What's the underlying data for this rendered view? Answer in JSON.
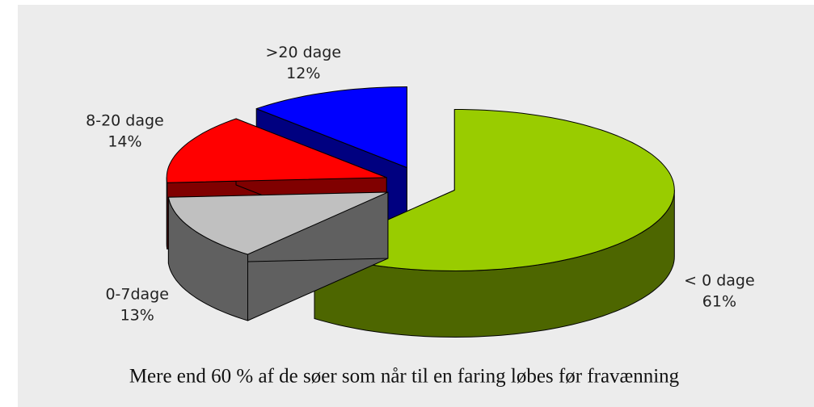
{
  "chart_data": {
    "type": "pie3d",
    "caption": "Mere end 60 % af de søer som når til en faring løbes før fravænning",
    "categories": [
      "< 0 dage",
      "0-7dage",
      "8-20 dage",
      ">20 dage"
    ],
    "values": [
      61,
      13,
      14,
      12
    ],
    "value_labels": [
      "61%",
      "13%",
      "14%",
      "12%"
    ],
    "colors": [
      "#99cc00",
      "#c0c0c0",
      "#ff0000",
      "#0000ff"
    ]
  }
}
